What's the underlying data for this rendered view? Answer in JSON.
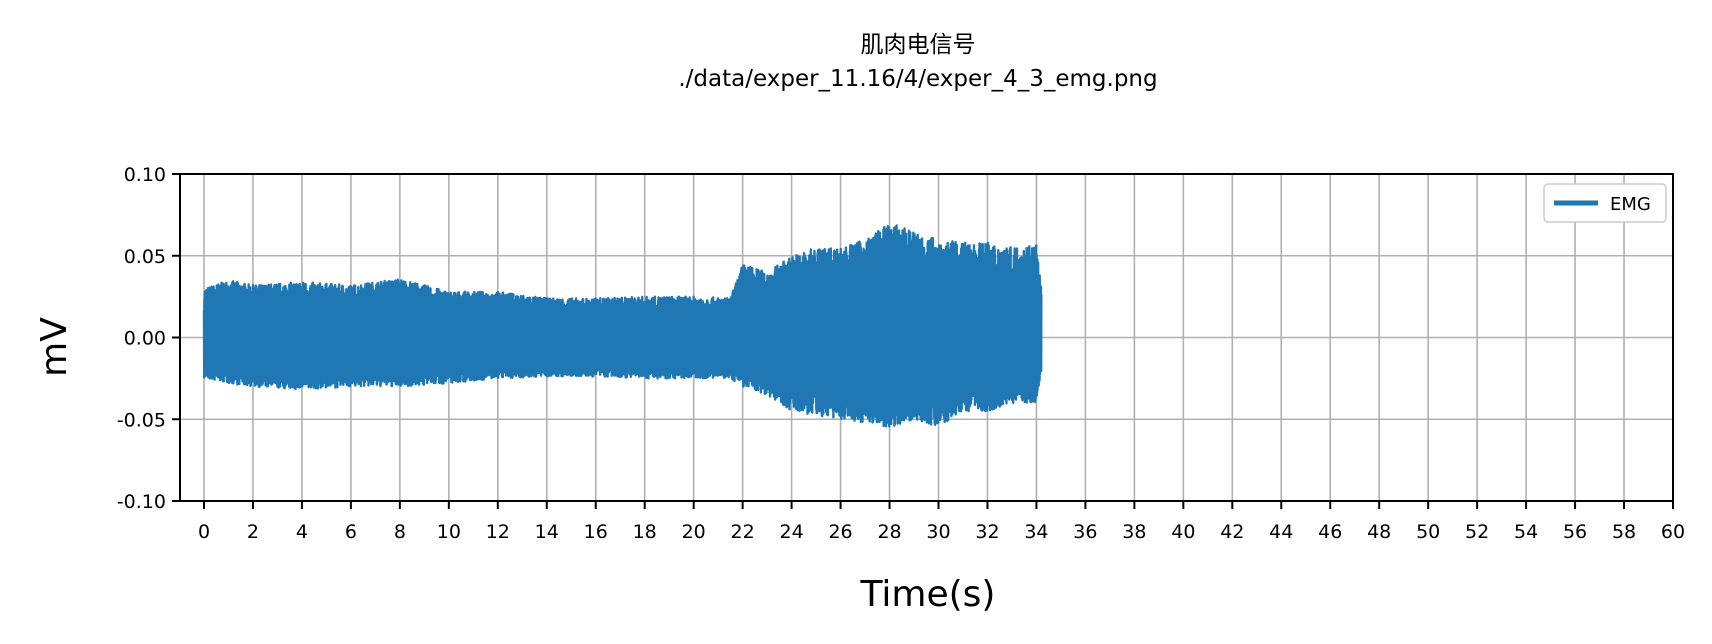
{
  "chart_data": {
    "type": "line",
    "title": "肌肉电信号",
    "subtitle": "./data/exper_11.16/4/exper_4_3_emg.png",
    "xlabel": "Time(s)",
    "ylabel": "mV",
    "xlim": [
      -1,
      60
    ],
    "ylim": [
      -0.1,
      0.1
    ],
    "x_ticks": [
      0,
      2,
      4,
      6,
      8,
      10,
      12,
      14,
      16,
      18,
      20,
      22,
      24,
      26,
      28,
      30,
      32,
      34,
      36,
      38,
      40,
      42,
      44,
      46,
      48,
      50,
      52,
      54,
      56,
      58,
      60
    ],
    "y_ticks": [
      -0.1,
      -0.05,
      0.0,
      0.05,
      0.1
    ],
    "y_tick_labels": [
      "-0.10",
      "-0.05",
      "0.00",
      "0.05",
      "0.10"
    ],
    "grid": true,
    "legend_position": "top-right",
    "series": [
      {
        "name": "EMG",
        "color": "#1f77b4",
        "x_range": [
          0,
          34.2
        ],
        "envelope": {
          "t": [
            0,
            1,
            2,
            4,
            6,
            8,
            10,
            12,
            14,
            16,
            18,
            20,
            21.5,
            22,
            23,
            24,
            25,
            26,
            27,
            28,
            29,
            30,
            31,
            32,
            33,
            34,
            34.2
          ],
          "upper": [
            0.03,
            0.035,
            0.032,
            0.034,
            0.032,
            0.036,
            0.028,
            0.028,
            0.024,
            0.024,
            0.025,
            0.025,
            0.024,
            0.045,
            0.04,
            0.05,
            0.055,
            0.055,
            0.06,
            0.07,
            0.065,
            0.06,
            0.058,
            0.058,
            0.055,
            0.058,
            0.03
          ],
          "lower": [
            -0.025,
            -0.028,
            -0.03,
            -0.032,
            -0.03,
            -0.03,
            -0.028,
            -0.025,
            -0.024,
            -0.024,
            -0.025,
            -0.025,
            -0.025,
            -0.03,
            -0.035,
            -0.045,
            -0.048,
            -0.05,
            -0.052,
            -0.055,
            -0.05,
            -0.055,
            -0.045,
            -0.045,
            -0.04,
            -0.04,
            -0.02
          ]
        }
      }
    ]
  }
}
